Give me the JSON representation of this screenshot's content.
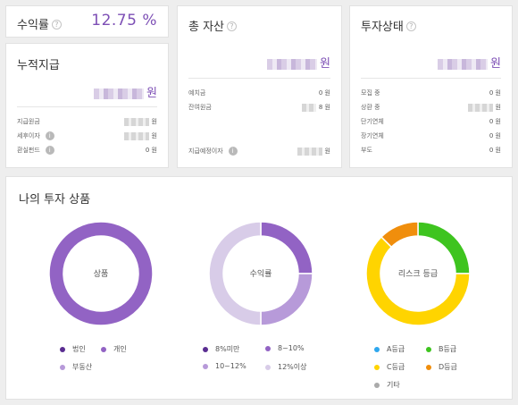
{
  "return_card": {
    "title": "수익률",
    "value": "12.75 %"
  },
  "cumulative_card": {
    "title": "누적지급",
    "amount_unit": "원",
    "rows": [
      {
        "label": "지급원금",
        "unit": "원",
        "info": false
      },
      {
        "label": "세후이자",
        "unit": "원",
        "info": true
      },
      {
        "label": "환실펀드",
        "value": "0 원",
        "info": true
      }
    ]
  },
  "assets_card": {
    "title": "총 자산",
    "amount_unit": "원",
    "rows": [
      {
        "label": "예치금",
        "value": "0 원"
      },
      {
        "label": "잔여원금",
        "value": "8 원"
      }
    ],
    "bottom_row": {
      "label": "지급예정이자",
      "unit": "원"
    }
  },
  "status_card": {
    "title": "투자상태",
    "amount_unit": "원",
    "rows": [
      {
        "label": "모집 중",
        "value": "0 원"
      },
      {
        "label": "상환 중",
        "unit": "원"
      },
      {
        "label": "단기연체",
        "value": "0 원"
      },
      {
        "label": "장기연체",
        "value": "0 원"
      },
      {
        "label": "부도",
        "value": "0 원"
      }
    ]
  },
  "products_section": {
    "title": "나의 투자 상품",
    "charts": [
      {
        "center_label": "상품",
        "segments": [
          {
            "name": "법인",
            "value": 0,
            "color": "#5a2d91"
          },
          {
            "name": "개인",
            "value": 100,
            "color": "#9263c4"
          },
          {
            "name": "부동산",
            "value": 0,
            "color": "#b79ad9"
          }
        ]
      },
      {
        "center_label": "수익률",
        "segments": [
          {
            "name": "8%미만",
            "value": 0,
            "color": "#5a2d91"
          },
          {
            "name": "8~10%",
            "value": 25,
            "color": "#9263c4"
          },
          {
            "name": "10~12%",
            "value": 25,
            "color": "#b79ad9"
          },
          {
            "name": "12%이상",
            "value": 50,
            "color": "#d8cce8"
          }
        ]
      },
      {
        "center_label": "리스크 등급",
        "segments": [
          {
            "name": "A등급",
            "value": 0,
            "color": "#2ea7ee"
          },
          {
            "name": "B등급",
            "value": 25,
            "color": "#3ec41f"
          },
          {
            "name": "C등급",
            "value": 62.5,
            "color": "#ffd400"
          },
          {
            "name": "D등급",
            "value": 12.5,
            "color": "#f08e0c"
          },
          {
            "name": "기타",
            "value": 0,
            "color": "#aaaaaa"
          }
        ]
      }
    ]
  }
}
